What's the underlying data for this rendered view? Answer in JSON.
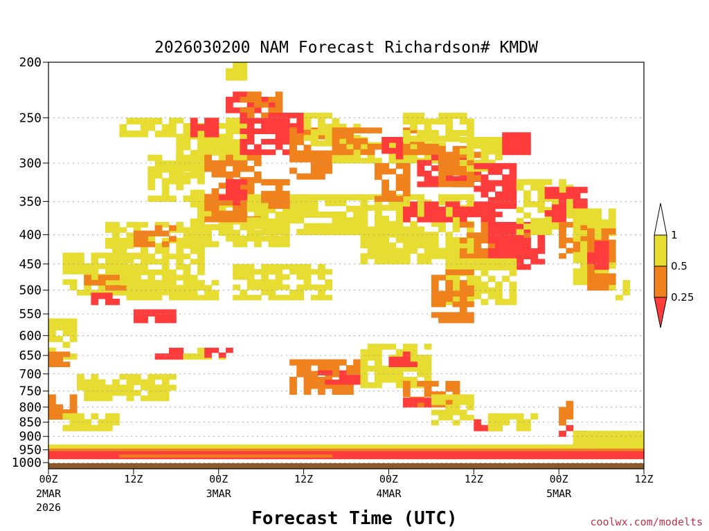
{
  "chart_data": {
    "type": "heatmap",
    "title": "2026030200 NAM Forecast Richardson# KMDW",
    "xlabel": "Forecast Time (UTC)",
    "ylabel": "",
    "credit": "coolwx.com/modelts",
    "x_range_hours": [
      0,
      84
    ],
    "y_axis_scale": "log-pressure",
    "y_range_mb": [
      1025,
      200
    ],
    "y_ticks": [
      "200",
      "250",
      "300",
      "350",
      "400",
      "450",
      "500",
      "550",
      "600",
      "650",
      "700",
      "750",
      "800",
      "850",
      "900",
      "950",
      "1000"
    ],
    "x_ticks": [
      {
        "hour": 0,
        "label": "00Z",
        "date": "2MAR",
        "year": "2026"
      },
      {
        "hour": 12,
        "label": "12Z",
        "date": "",
        "year": ""
      },
      {
        "hour": 24,
        "label": "00Z",
        "date": "3MAR",
        "year": ""
      },
      {
        "hour": 36,
        "label": "12Z",
        "date": "",
        "year": ""
      },
      {
        "hour": 48,
        "label": "00Z",
        "date": "4MAR",
        "year": ""
      },
      {
        "hour": 60,
        "label": "12Z",
        "date": "",
        "year": ""
      },
      {
        "hour": 72,
        "label": "00Z",
        "date": "5MAR",
        "year": ""
      },
      {
        "hour": 84,
        "label": "12Z",
        "date": "",
        "year": ""
      }
    ],
    "legend": {
      "levels": [
        "1",
        "0.5",
        "0.25"
      ],
      "bins": [
        {
          "name": "Ri 0.5 to 1",
          "color": "#e6dc32"
        },
        {
          "name": "Ri 0.25 to 0.5",
          "color": "#f0821e"
        },
        {
          "name": "Ri below 0.25",
          "color": "#ff3c3c"
        }
      ]
    },
    "colors": {
      "yellow": "#e6dc32",
      "orange": "#f0821e",
      "red": "#ff3c3c",
      "ground": "#8b5a2b"
    },
    "surface_pressure_mb": 1000,
    "regions": [
      {
        "cls": "y",
        "h": [
          2,
          14
        ],
        "p": [
          430,
          510
        ]
      },
      {
        "cls": "y",
        "h": [
          8,
          22
        ],
        "p": [
          380,
          480
        ]
      },
      {
        "cls": "o",
        "h": [
          5,
          11
        ],
        "p": [
          470,
          500
        ]
      },
      {
        "cls": "r",
        "h": [
          6,
          11
        ],
        "p": [
          505,
          530
        ]
      },
      {
        "cls": "o",
        "h": [
          12,
          18
        ],
        "p": [
          385,
          420
        ]
      },
      {
        "cls": "y",
        "h": [
          10,
          18
        ],
        "p": [
          250,
          270
        ]
      },
      {
        "cls": "y",
        "h": [
          14,
          22
        ],
        "p": [
          290,
          350
        ]
      },
      {
        "cls": "y",
        "h": [
          18,
          28
        ],
        "p": [
          250,
          310
        ]
      },
      {
        "cls": "y",
        "h": [
          20,
          34
        ],
        "p": [
          350,
          420
        ]
      },
      {
        "cls": "o",
        "h": [
          22,
          30
        ],
        "p": [
          290,
          380
        ]
      },
      {
        "cls": "r",
        "h": [
          20,
          24
        ],
        "p": [
          250,
          270
        ]
      },
      {
        "cls": "y",
        "h": [
          25,
          28
        ],
        "p": [
          200,
          215
        ]
      },
      {
        "cls": "r",
        "h": [
          25,
          32
        ],
        "p": [
          225,
          245
        ]
      },
      {
        "cls": "o",
        "h": [
          27,
          33
        ],
        "p": [
          225,
          250
        ]
      },
      {
        "cls": "r",
        "h": [
          27,
          36
        ],
        "p": [
          245,
          290
        ]
      },
      {
        "cls": "o",
        "h": [
          34,
          40
        ],
        "p": [
          260,
          320
        ]
      },
      {
        "cls": "y",
        "h": [
          36,
          44
        ],
        "p": [
          245,
          280
        ]
      },
      {
        "cls": "y",
        "h": [
          28,
          44
        ],
        "p": [
          340,
          400
        ]
      },
      {
        "cls": "o",
        "h": [
          30,
          34
        ],
        "p": [
          320,
          360
        ]
      },
      {
        "cls": "r",
        "h": [
          24,
          28
        ],
        "p": [
          320,
          355
        ]
      },
      {
        "cls": "y",
        "h": [
          40,
          56
        ],
        "p": [
          270,
          300
        ]
      },
      {
        "cls": "o",
        "h": [
          40,
          47
        ],
        "p": [
          260,
          290
        ]
      },
      {
        "cls": "y",
        "h": [
          44,
          60
        ],
        "p": [
          340,
          450
        ]
      },
      {
        "cls": "o",
        "h": [
          46,
          51
        ],
        "p": [
          300,
          350
        ]
      },
      {
        "cls": "r",
        "h": [
          47,
          50
        ],
        "p": [
          270,
          295
        ]
      },
      {
        "cls": "o",
        "h": [
          50,
          55
        ],
        "p": [
          260,
          290
        ]
      },
      {
        "cls": "y",
        "h": [
          50,
          60
        ],
        "p": [
          245,
          275
        ]
      },
      {
        "cls": "r",
        "h": [
          50,
          64
        ],
        "p": [
          350,
          380
        ]
      },
      {
        "cls": "r",
        "h": [
          52,
          62
        ],
        "p": [
          290,
          330
        ]
      },
      {
        "cls": "o",
        "h": [
          55,
          62
        ],
        "p": [
          280,
          330
        ]
      },
      {
        "cls": "y",
        "h": [
          58,
          64
        ],
        "p": [
          270,
          310
        ]
      },
      {
        "cls": "r",
        "h": [
          60,
          66
        ],
        "p": [
          300,
          360
        ]
      },
      {
        "cls": "o",
        "h": [
          58,
          68
        ],
        "p": [
          380,
          460
        ]
      },
      {
        "cls": "r",
        "h": [
          62,
          70
        ],
        "p": [
          380,
          460
        ]
      },
      {
        "cls": "y",
        "h": [
          56,
          66
        ],
        "p": [
          440,
          530
        ]
      },
      {
        "cls": "o",
        "h": [
          54,
          60
        ],
        "p": [
          460,
          570
        ]
      },
      {
        "cls": "r",
        "h": [
          64,
          68
        ],
        "p": [
          265,
          290
        ]
      },
      {
        "cls": "y",
        "h": [
          66,
          74
        ],
        "p": [
          320,
          400
        ]
      },
      {
        "cls": "r",
        "h": [
          70,
          76
        ],
        "p": [
          330,
          380
        ]
      },
      {
        "cls": "o",
        "h": [
          72,
          76
        ],
        "p": [
          380,
          440
        ]
      },
      {
        "cls": "y",
        "h": [
          74,
          80
        ],
        "p": [
          360,
          500
        ]
      },
      {
        "cls": "o",
        "h": [
          76,
          80
        ],
        "p": [
          390,
          500
        ]
      },
      {
        "cls": "r",
        "h": [
          76,
          79
        ],
        "p": [
          410,
          460
        ]
      },
      {
        "cls": "y",
        "h": [
          80,
          82
        ],
        "p": [
          480,
          520
        ]
      },
      {
        "cls": "y",
        "h": [
          10,
          24
        ],
        "p": [
          480,
          520
        ]
      },
      {
        "cls": "y",
        "h": [
          26,
          40
        ],
        "p": [
          450,
          520
        ]
      },
      {
        "cls": "r",
        "h": [
          12,
          18
        ],
        "p": [
          540,
          570
        ]
      },
      {
        "cls": "y",
        "h": [
          0,
          4
        ],
        "p": [
          560,
          660
        ]
      },
      {
        "cls": "o",
        "h": [
          0,
          3
        ],
        "p": [
          640,
          680
        ]
      },
      {
        "cls": "r",
        "h": [
          15,
          19
        ],
        "p": [
          630,
          660
        ]
      },
      {
        "cls": "y",
        "h": [
          19,
          25
        ],
        "p": [
          630,
          660
        ]
      },
      {
        "cls": "r",
        "h": [
          22,
          26
        ],
        "p": [
          630,
          655
        ]
      },
      {
        "cls": "y",
        "h": [
          4,
          18
        ],
        "p": [
          700,
          780
        ]
      },
      {
        "cls": "o",
        "h": [
          0,
          4
        ],
        "p": [
          760,
          840
        ]
      },
      {
        "cls": "y",
        "h": [
          2,
          10
        ],
        "p": [
          820,
          880
        ]
      },
      {
        "cls": "o",
        "h": [
          34,
          44
        ],
        "p": [
          660,
          760
        ]
      },
      {
        "cls": "r",
        "h": [
          38,
          44
        ],
        "p": [
          690,
          730
        ]
      },
      {
        "cls": "y",
        "h": [
          44,
          54
        ],
        "p": [
          620,
          740
        ]
      },
      {
        "cls": "r",
        "h": [
          48,
          52
        ],
        "p": [
          640,
          680
        ]
      },
      {
        "cls": "o",
        "h": [
          50,
          58
        ],
        "p": [
          720,
          800
        ]
      },
      {
        "cls": "r",
        "h": [
          50,
          54
        ],
        "p": [
          770,
          800
        ]
      },
      {
        "cls": "y",
        "h": [
          54,
          60
        ],
        "p": [
          760,
          860
        ]
      },
      {
        "cls": "r",
        "h": [
          60,
          64
        ],
        "p": [
          840,
          880
        ]
      },
      {
        "cls": "y",
        "h": [
          62,
          70
        ],
        "p": [
          820,
          880
        ]
      },
      {
        "cls": "o",
        "h": [
          72,
          74
        ],
        "p": [
          780,
          860
        ]
      },
      {
        "cls": "r",
        "h": [
          72,
          76
        ],
        "p": [
          860,
          900
        ]
      },
      {
        "cls": "y",
        "h": [
          74,
          84
        ],
        "p": [
          880,
          930
        ]
      },
      {
        "cls": "y",
        "h": [
          0,
          84
        ],
        "p": [
          930,
          955
        ]
      },
      {
        "cls": "o",
        "h": [
          0,
          84
        ],
        "p": [
          945,
          965
        ]
      },
      {
        "cls": "r",
        "h": [
          0,
          84
        ],
        "p": [
          955,
          985
        ]
      },
      {
        "cls": "o",
        "h": [
          10,
          40
        ],
        "p": [
          968,
          978
        ]
      }
    ]
  }
}
